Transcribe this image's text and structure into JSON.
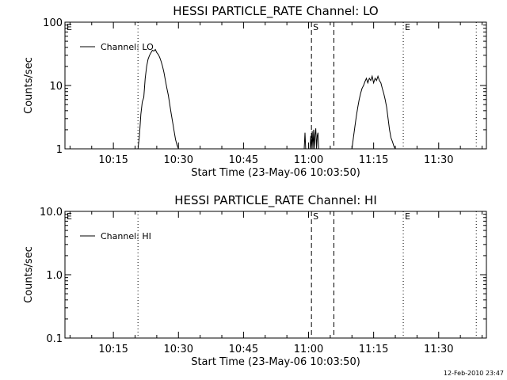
{
  "chart_data": [
    {
      "type": "line",
      "title": "HESSI PARTICLE_RATE Channel: LO",
      "xlabel": "Start Time (23-May-06 10:03:50)",
      "ylabel": "Counts/sec",
      "yscale": "log",
      "ylim": [
        1,
        100
      ],
      "xlim": [
        "10:03:50",
        "11:41:00"
      ],
      "x_ticks": [
        "10:15",
        "10:30",
        "10:45",
        "11:00",
        "11:15",
        "11:30"
      ],
      "y_ticks": [
        "1",
        "10",
        "100"
      ],
      "legend": "top-left",
      "series": [
        {
          "name": "Channel: LO",
          "segments": [
            {
              "x": [
                "10:20:40",
                "10:21:00",
                "10:21:20",
                "10:21:40",
                "10:22:00",
                "10:22:20",
                "10:22:40",
                "10:23:00",
                "10:23:20",
                "10:23:40",
                "10:24:00",
                "10:24:20",
                "10:24:40",
                "10:25:00",
                "10:25:20",
                "10:25:40",
                "10:26:00",
                "10:26:20",
                "10:26:40",
                "10:27:00",
                "10:27:20",
                "10:27:40",
                "10:28:00",
                "10:28:20",
                "10:28:40",
                "10:29:00",
                "10:29:20",
                "10:29:40",
                "10:30:00"
              ],
              "y": [
                1,
                1.6,
                3.5,
                5.5,
                6.5,
                13,
                20,
                26,
                30,
                33,
                36,
                35,
                37,
                33,
                31,
                28,
                24,
                20,
                16,
                12,
                9,
                7,
                5,
                3.6,
                2.6,
                1.9,
                1.4,
                1.15,
                1
              ]
            },
            {
              "x": [
                "10:59:00",
                "10:59:10",
                "10:59:20",
                "10:59:30",
                "10:59:40"
              ],
              "y": [
                1,
                1.8,
                1,
                1,
                1
              ]
            },
            {
              "x": [
                "11:00:20",
                "11:00:30",
                "11:00:40",
                "11:00:50",
                "11:01:00",
                "11:01:10",
                "11:01:20",
                "11:01:30",
                "11:01:40",
                "11:01:50",
                "11:02:00",
                "11:02:10",
                "11:02:20"
              ],
              "y": [
                1,
                1.6,
                1,
                1.9,
                1,
                2.0,
                1,
                1.7,
                2.1,
                1,
                1.6,
                1.8,
                1
              ]
            },
            {
              "x": [
                "11:10:00",
                "11:10:20",
                "11:10:40",
                "11:11:00",
                "11:11:20",
                "11:11:40",
                "11:12:00",
                "11:12:20",
                "11:12:40",
                "11:13:00",
                "11:13:20",
                "11:13:40",
                "11:14:00",
                "11:14:20",
                "11:14:40",
                "11:15:00",
                "11:15:20",
                "11:15:40",
                "11:16:00",
                "11:16:20",
                "11:16:40",
                "11:17:00",
                "11:17:20",
                "11:17:40",
                "11:18:00",
                "11:18:20",
                "11:18:40",
                "11:19:00",
                "11:19:20",
                "11:19:40",
                "11:20:00"
              ],
              "y": [
                1,
                1.5,
                2.2,
                3.2,
                4.5,
                6,
                7.5,
                9,
                10,
                11.5,
                13,
                11,
                13,
                12,
                14,
                11,
                13,
                12,
                14,
                12,
                11,
                9,
                7.5,
                6,
                4.5,
                3,
                2,
                1.5,
                1.3,
                1.1,
                1
              ]
            }
          ]
        }
      ],
      "markers": [
        {
          "label": "E",
          "time": "10:03:50",
          "style": "dotted"
        },
        {
          "label": "",
          "time": "10:20:40",
          "style": "dotted"
        },
        {
          "label": "S",
          "time": "11:00:40",
          "style": "dashed"
        },
        {
          "label": "",
          "time": "11:05:50",
          "style": "dashed"
        },
        {
          "label": "E",
          "time": "11:21:50",
          "style": "dotted"
        },
        {
          "label": "",
          "time": "11:38:40",
          "style": "dotted"
        }
      ]
    },
    {
      "type": "line",
      "title": "HESSI PARTICLE_RATE Channel: HI",
      "xlabel": "Start Time (23-May-06 10:03:50)",
      "ylabel": "Counts/sec",
      "yscale": "log",
      "ylim": [
        0.1,
        10
      ],
      "xlim": [
        "10:03:50",
        "11:41:00"
      ],
      "x_ticks": [
        "10:15",
        "10:30",
        "10:45",
        "11:00",
        "11:15",
        "11:30"
      ],
      "y_ticks": [
        "0.1",
        "1.0",
        "10.0"
      ],
      "legend": "top-left",
      "series": [
        {
          "name": "Channel: HI",
          "segments": []
        }
      ],
      "markers": [
        {
          "label": "E",
          "time": "10:03:50",
          "style": "dotted"
        },
        {
          "label": "",
          "time": "10:20:40",
          "style": "dotted"
        },
        {
          "label": "S",
          "time": "11:00:40",
          "style": "dashed"
        },
        {
          "label": "",
          "time": "11:05:50",
          "style": "dashed"
        },
        {
          "label": "E",
          "time": "11:21:50",
          "style": "dotted"
        },
        {
          "label": "",
          "time": "11:38:40",
          "style": "dotted"
        }
      ]
    }
  ],
  "footer": {
    "timestamp": "12-Feb-2010 23:47"
  }
}
